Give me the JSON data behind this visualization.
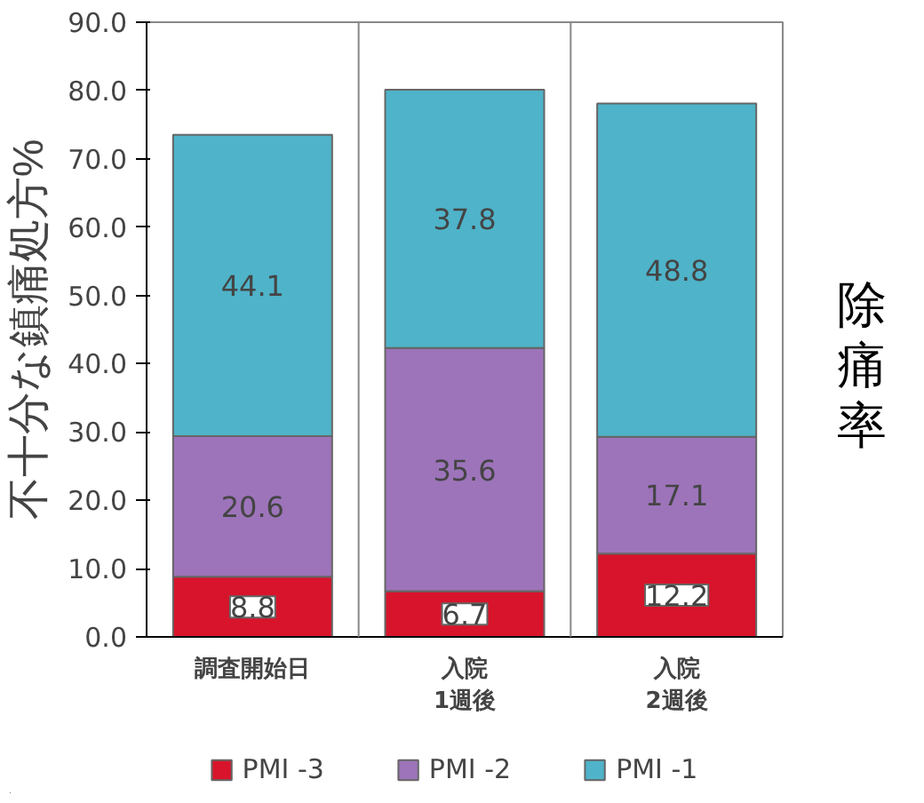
{
  "chart_data": {
    "type": "bar",
    "stacked": true,
    "ylabel": "不十分な鎮痛処方%",
    "y2label": "除痛率",
    "categories": [
      "調査開始日",
      "入院\n1週後",
      "入院\n2週後"
    ],
    "series": [
      {
        "name": "PMI -3",
        "color": "#d7142b",
        "values": [
          8.8,
          6.7,
          12.2
        ]
      },
      {
        "name": "PMI -2",
        "color": "#9d74ba",
        "values": [
          20.6,
          35.6,
          17.1
        ]
      },
      {
        "name": "PMI -1",
        "color": "#4fb3c9",
        "values": [
          44.1,
          37.8,
          48.8
        ]
      }
    ],
    "ylim": [
      0,
      90
    ],
    "yticks": [
      {
        "value": 0,
        "label": "0.0"
      },
      {
        "value": 10,
        "label": "10.0"
      },
      {
        "value": 20,
        "label": "20.0"
      },
      {
        "value": 30,
        "label": "30.0"
      },
      {
        "value": 40,
        "label": "40.0"
      },
      {
        "value": 50,
        "label": "50.0"
      },
      {
        "value": 60,
        "label": "60.0"
      },
      {
        "value": 70,
        "label": "70.0"
      },
      {
        "value": 80,
        "label": "80.0"
      },
      {
        "value": 90,
        "label": "90.0"
      }
    ],
    "grid": "x",
    "legend": "bottom",
    "data_labels": true
  }
}
